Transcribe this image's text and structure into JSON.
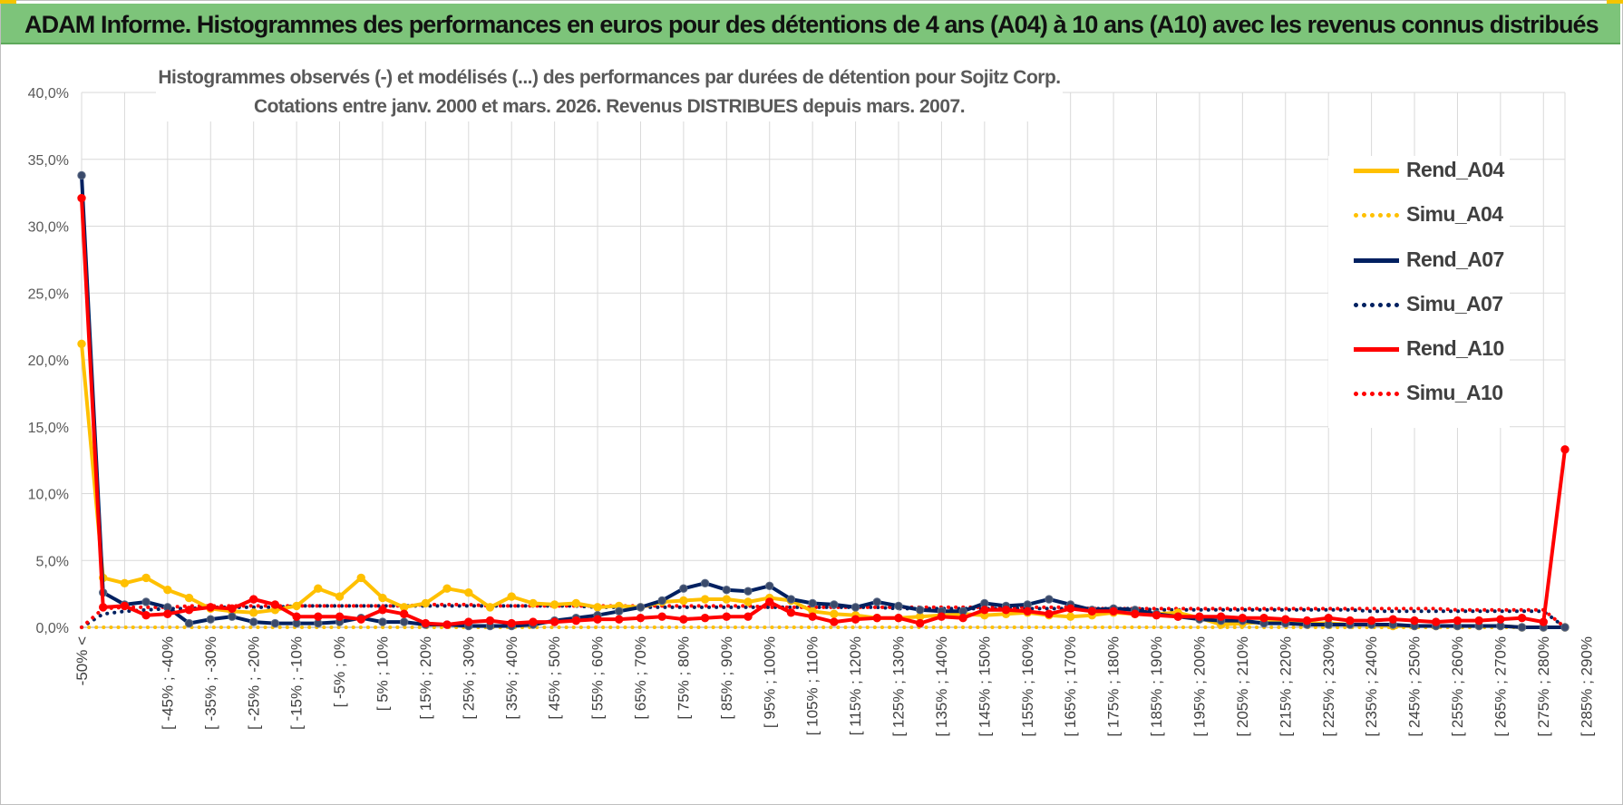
{
  "banner": {
    "title": "ADAM Informe. Histogrammes des performances en euros pour des détentions de 4 ans (A04) à 10 ans (A10) avec les revenus connus distribués"
  },
  "chart_data": {
    "type": "line",
    "title_lines": [
      "Histogrammes observés (-) et modélisés (...) des performances par durées de détention pour Sojitz Corp.",
      "Cotations entre janv. 2000 et mars. 2026. Revenus DISTRIBUES depuis mars. 2007."
    ],
    "xlabel": "",
    "ylabel": "",
    "ylim": [
      0,
      40
    ],
    "y_ticks": [
      "0,0%",
      "5,0%",
      "10,0%",
      "15,0%",
      "20,0%",
      "25,0%",
      "30,0%",
      "35,0%",
      "40,0%"
    ],
    "grid": true,
    "legend_position": "right",
    "x_tick_labels": [
      "-50% <",
      "[ -45% ; -40%",
      "[ -35% ; -30%",
      "[ -25% ; -20%",
      "[ -15% ; -10%",
      "[ -5% ; 0%",
      "[ 5% ; 10%",
      "[ 15% ; 20%",
      "[ 25% ; 30%",
      "[ 35% ; 40%",
      "[ 45% ; 50%",
      "[ 55% ; 60%",
      "[ 65% ; 70%",
      "[ 75% ; 80%",
      "[ 85% ; 90%",
      "[ 95% ; 100%",
      "[ 105% ; 110%",
      "[ 115% ; 120%",
      "[ 125% ; 130%",
      "[ 135% ; 140%",
      "[ 145% ; 150%",
      "[ 155% ; 160%",
      "[ 165% ; 170%",
      "[ 175% ; 180%",
      "[ 185% ; 190%",
      "[ 195% ; 200%",
      "[ 205% ; 210%",
      "[ 215% ; 220%",
      "[ 225% ; 230%",
      "[ 235% ; 240%",
      "[ 245% ; 250%",
      "[ 255% ; 260%",
      "[ 265% ; 270%",
      "[ 275% ; 280%",
      "[ 285% ; 290%"
    ],
    "num_points": 70,
    "series": [
      {
        "name": "Rend_A04",
        "style": "solid",
        "color": "#ffc000",
        "markers": true,
        "values": [
          21.2,
          3.7,
          3.3,
          3.7,
          2.8,
          2.2,
          1.4,
          1.2,
          1.1,
          1.3,
          1.6,
          2.9,
          2.3,
          3.7,
          2.2,
          1.5,
          1.8,
          2.9,
          2.6,
          1.5,
          2.3,
          1.8,
          1.7,
          1.8,
          1.5,
          1.6,
          1.5,
          1.9,
          2.0,
          2.1,
          2.1,
          1.9,
          2.2,
          2.0,
          1.2,
          1.0,
          0.9,
          0.7,
          0.7,
          0.8,
          0.9,
          1.0,
          0.9,
          1.0,
          1.1,
          0.9,
          0.8,
          0.9,
          1.1,
          1.0,
          1.0,
          1.1,
          0.7,
          0.2,
          0.3,
          0.4,
          0.4,
          0.3,
          0.3,
          0.2,
          0.2,
          0.1,
          0.1,
          0.1,
          0.1,
          0.1,
          0.1,
          0.0,
          0.0,
          0.0
        ]
      },
      {
        "name": "Simu_A04",
        "style": "dotted",
        "color": "#ffc000",
        "markers": false,
        "values": [
          0.0,
          0.0,
          0.0,
          0.0,
          0.0,
          0.0,
          0.0,
          0.0,
          0.0,
          0.0,
          0.0,
          0.0,
          0.0,
          0.0,
          0.0,
          0.0,
          0.0,
          0.0,
          0.0,
          0.0,
          0.0,
          0.0,
          0.0,
          0.0,
          0.0,
          0.0,
          0.0,
          0.0,
          0.0,
          0.0,
          0.0,
          0.0,
          0.0,
          0.0,
          0.0,
          0.0,
          0.0,
          0.0,
          0.0,
          0.0,
          0.0,
          0.0,
          0.0,
          0.0,
          0.0,
          0.0,
          0.0,
          0.0,
          0.0,
          0.0,
          0.0,
          0.0,
          0.0,
          0.0,
          0.0,
          0.0,
          0.0,
          0.0,
          0.0,
          0.0,
          0.0,
          0.0,
          0.0,
          0.0,
          0.0,
          0.0,
          0.0,
          0.0,
          0.0,
          0.0
        ]
      },
      {
        "name": "Rend_A07",
        "style": "solid",
        "color": "#002060",
        "markers": true,
        "values": [
          33.8,
          2.6,
          1.7,
          1.9,
          1.5,
          0.3,
          0.6,
          0.8,
          0.4,
          0.3,
          0.3,
          0.3,
          0.4,
          0.7,
          0.4,
          0.4,
          0.2,
          0.2,
          0.1,
          0.1,
          0.1,
          0.2,
          0.5,
          0.7,
          0.9,
          1.2,
          1.5,
          2.0,
          2.9,
          3.3,
          2.8,
          2.7,
          3.1,
          2.1,
          1.8,
          1.7,
          1.5,
          1.9,
          1.6,
          1.3,
          1.2,
          1.2,
          1.8,
          1.6,
          1.7,
          2.1,
          1.7,
          1.3,
          1.4,
          1.3,
          1.0,
          0.8,
          0.6,
          0.5,
          0.5,
          0.3,
          0.3,
          0.2,
          0.2,
          0.2,
          0.2,
          0.2,
          0.1,
          0.1,
          0.1,
          0.1,
          0.1,
          0.0,
          0.0,
          0.0
        ]
      },
      {
        "name": "Simu_A07",
        "style": "dotted",
        "color": "#002060",
        "markers": false,
        "values": [
          0.0,
          1.0,
          1.2,
          1.3,
          1.4,
          1.4,
          1.5,
          1.5,
          1.5,
          1.5,
          1.6,
          1.6,
          1.6,
          1.6,
          1.6,
          1.6,
          1.6,
          1.6,
          1.6,
          1.6,
          1.6,
          1.6,
          1.6,
          1.6,
          1.5,
          1.5,
          1.5,
          1.5,
          1.5,
          1.5,
          1.5,
          1.5,
          1.5,
          1.5,
          1.5,
          1.5,
          1.5,
          1.5,
          1.4,
          1.4,
          1.4,
          1.4,
          1.4,
          1.4,
          1.4,
          1.4,
          1.4,
          1.4,
          1.4,
          1.4,
          1.3,
          1.3,
          1.3,
          1.3,
          1.3,
          1.3,
          1.3,
          1.3,
          1.3,
          1.3,
          1.2,
          1.2,
          1.2,
          1.2,
          1.2,
          1.2,
          1.2,
          1.2,
          1.2,
          0.0
        ]
      },
      {
        "name": "Rend_A10",
        "style": "solid",
        "color": "#ff0000",
        "markers": true,
        "values": [
          32.1,
          1.5,
          1.6,
          0.9,
          1.0,
          1.3,
          1.5,
          1.4,
          2.1,
          1.7,
          0.8,
          0.8,
          0.8,
          0.6,
          1.3,
          1.0,
          0.3,
          0.2,
          0.4,
          0.5,
          0.3,
          0.4,
          0.4,
          0.5,
          0.6,
          0.6,
          0.7,
          0.8,
          0.6,
          0.7,
          0.8,
          0.8,
          1.9,
          1.1,
          0.8,
          0.4,
          0.6,
          0.7,
          0.7,
          0.3,
          0.8,
          0.7,
          1.3,
          1.3,
          1.2,
          1.0,
          1.4,
          1.2,
          1.2,
          1.0,
          0.9,
          0.8,
          0.8,
          0.8,
          0.7,
          0.7,
          0.6,
          0.5,
          0.7,
          0.5,
          0.5,
          0.6,
          0.5,
          0.4,
          0.5,
          0.5,
          0.6,
          0.7,
          0.4,
          13.3
        ]
      },
      {
        "name": "Simu_A10",
        "style": "dotted",
        "color": "#ff0000",
        "markers": false,
        "values": [
          0.0,
          1.4,
          1.5,
          1.5,
          1.5,
          1.6,
          1.6,
          1.6,
          1.6,
          1.6,
          1.6,
          1.6,
          1.6,
          1.6,
          1.6,
          1.6,
          1.7,
          1.7,
          1.7,
          1.6,
          1.6,
          1.6,
          1.6,
          1.6,
          1.6,
          1.6,
          1.6,
          1.6,
          1.6,
          1.6,
          1.6,
          1.6,
          1.5,
          1.5,
          1.5,
          1.5,
          1.5,
          1.5,
          1.5,
          1.5,
          1.5,
          1.5,
          1.5,
          1.5,
          1.5,
          1.5,
          1.5,
          1.4,
          1.4,
          1.4,
          1.4,
          1.4,
          1.4,
          1.4,
          1.4,
          1.4,
          1.4,
          1.4,
          1.4,
          1.4,
          1.4,
          1.4,
          1.4,
          1.4,
          1.3,
          1.3,
          1.3,
          1.3,
          1.3,
          0.0
        ]
      }
    ]
  }
}
